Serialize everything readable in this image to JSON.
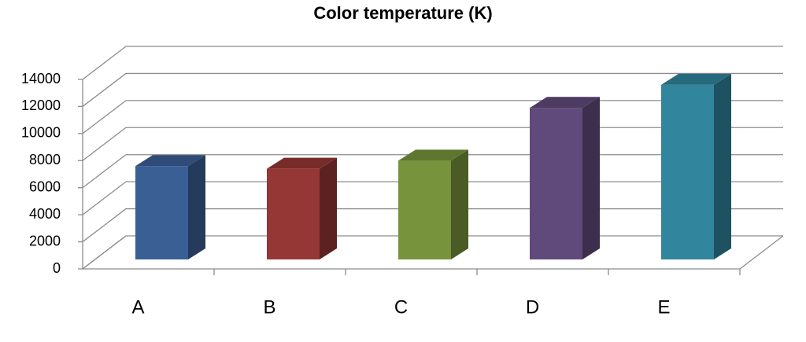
{
  "chart_data": {
    "type": "bar3d",
    "title": "Color temperature (K)",
    "categories": [
      "A",
      "B",
      "C",
      "D",
      "E"
    ],
    "values": [
      6900,
      6700,
      7300,
      11200,
      12900
    ],
    "colors": [
      "#3a5f95",
      "#953735",
      "#77933c",
      "#604a7b",
      "#31859c"
    ],
    "ylim": [
      0,
      14000
    ],
    "yticks": [
      0,
      2000,
      4000,
      6000,
      8000,
      10000,
      12000,
      14000
    ],
    "grid": true
  }
}
